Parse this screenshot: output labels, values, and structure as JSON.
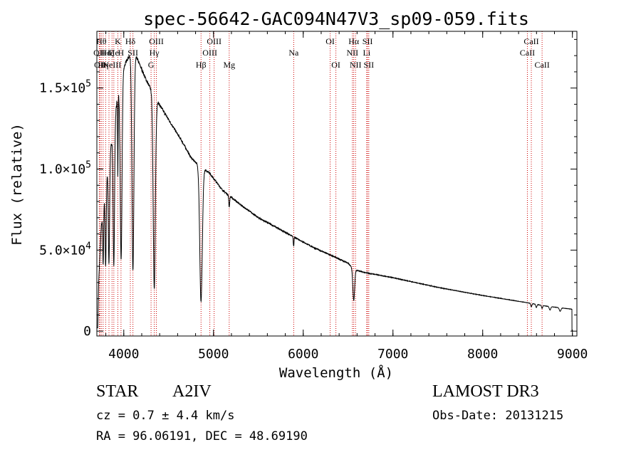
{
  "chart_data": {
    "type": "line",
    "title": "spec-56642-GAC094N47V3_sp09-059.fits",
    "xlabel": "Wavelength (Å)",
    "ylabel": "Flux (relative)",
    "xlim": [
      3700,
      9050
    ],
    "ylim": [
      -3000,
      185000
    ],
    "xticks": [
      {
        "value": 4000,
        "label": "4000"
      },
      {
        "value": 5000,
        "label": "5000"
      },
      {
        "value": 6000,
        "label": "6000"
      },
      {
        "value": 7000,
        "label": "7000"
      },
      {
        "value": 8000,
        "label": "8000"
      },
      {
        "value": 9000,
        "label": "9000"
      }
    ],
    "yticks": [
      {
        "value": 0,
        "mant": "0",
        "exp": ""
      },
      {
        "value": 50000,
        "mant": "5.0×10",
        "exp": "4"
      },
      {
        "value": 100000,
        "mant": "1.0×10",
        "exp": "5"
      },
      {
        "value": 150000,
        "mant": "1.5×10",
        "exp": "5"
      }
    ],
    "continuum": [
      [
        3710,
        2000
      ],
      [
        3720,
        30000
      ],
      [
        3750,
        65000
      ],
      [
        3800,
        90000
      ],
      [
        3860,
        115000
      ],
      [
        3920,
        140000
      ],
      [
        3980,
        160000
      ],
      [
        4040,
        168000
      ],
      [
        4100,
        172000
      ],
      [
        4150,
        168000
      ],
      [
        4250,
        155000
      ],
      [
        4350,
        144000
      ],
      [
        4450,
        135000
      ],
      [
        4550,
        126000
      ],
      [
        4650,
        117000
      ],
      [
        4750,
        107000
      ],
      [
        4861,
        101000
      ],
      [
        4950,
        98000
      ],
      [
        5100,
        87000
      ],
      [
        5300,
        78000
      ],
      [
        5500,
        70000
      ],
      [
        5700,
        64000
      ],
      [
        5900,
        58000
      ],
      [
        6100,
        52000
      ],
      [
        6300,
        47000
      ],
      [
        6500,
        42000
      ],
      [
        6563,
        38000
      ],
      [
        6700,
        36000
      ],
      [
        7000,
        33000
      ],
      [
        7500,
        27000
      ],
      [
        8000,
        22000
      ],
      [
        8500,
        17500
      ],
      [
        8700,
        15500
      ],
      [
        9000,
        13500
      ]
    ],
    "absorption": [
      {
        "name": "H-alpha",
        "center": 6563,
        "width": 10,
        "depth": 0.5
      },
      {
        "name": "H-beta",
        "center": 4861,
        "width": 14,
        "depth": 0.82
      },
      {
        "name": "H-gamma",
        "center": 4340,
        "width": 12,
        "depth": 0.82
      },
      {
        "name": "H-delta",
        "center": 4102,
        "width": 11,
        "depth": 0.78
      },
      {
        "name": "H-epsilon",
        "center": 3970,
        "width": 10,
        "depth": 0.72
      },
      {
        "name": "H8",
        "center": 3889,
        "width": 8,
        "depth": 0.68
      },
      {
        "name": "H9",
        "center": 3835,
        "width": 7,
        "depth": 0.6
      },
      {
        "name": "H10",
        "center": 3798,
        "width": 6,
        "depth": 0.55
      },
      {
        "name": "H11",
        "center": 3770,
        "width": 5,
        "depth": 0.45
      },
      {
        "name": "Ca K",
        "center": 3934,
        "width": 3,
        "depth": 0.35
      },
      {
        "name": "Mg",
        "center": 5175,
        "width": 5,
        "depth": 0.08
      },
      {
        "name": "Na",
        "center": 5893,
        "width": 4,
        "depth": 0.1
      },
      {
        "name": "CaII trip 1",
        "center": 8542,
        "width": 6,
        "depth": 0.12
      },
      {
        "name": "CaII trip 2",
        "center": 8662,
        "width": 6,
        "depth": 0.12
      },
      {
        "name": "Paschen 1",
        "center": 8750,
        "width": 8,
        "depth": 0.14
      },
      {
        "name": "Paschen 2",
        "center": 8863,
        "width": 9,
        "depth": 0.15
      },
      {
        "name": "Paschen 3",
        "center": 8598,
        "width": 6,
        "depth": 0.12
      }
    ],
    "line_markers": [
      {
        "wave": 3727,
        "label": "OII",
        "row": 2
      },
      {
        "wave": 3735,
        "label": "OII",
        "row": 3
      },
      {
        "wave": 3750,
        "label": "Hθ",
        "row": 1
      },
      {
        "wave": 3770,
        "label": "Hη",
        "row": 3
      },
      {
        "wave": 3798,
        "label": "Hε",
        "row": 2
      },
      {
        "wave": 3835,
        "label": "Hζ",
        "row": 2
      },
      {
        "wave": 3869,
        "label": "NeIII",
        "row": 3
      },
      {
        "wave": 3889,
        "label": "He",
        "row": 2
      },
      {
        "wave": 3934,
        "label": "K",
        "row": 1
      },
      {
        "wave": 3969,
        "label": "H",
        "row": 2
      },
      {
        "wave": 4073,
        "label": "Hδ",
        "row": 1
      },
      {
        "wave": 4102,
        "label": "SII",
        "row": 2
      },
      {
        "wave": 4304,
        "label": "G",
        "row": 3
      },
      {
        "wave": 4340,
        "label": "Hγ",
        "row": 2
      },
      {
        "wave": 4363,
        "label": "OIII",
        "row": 1
      },
      {
        "wave": 4861,
        "label": "Hβ",
        "row": 3
      },
      {
        "wave": 4959,
        "label": "OIII",
        "row": 2
      },
      {
        "wave": 5007,
        "label": "OIII",
        "row": 1
      },
      {
        "wave": 5175,
        "label": "Mg",
        "row": 3
      },
      {
        "wave": 5894,
        "label": "Na",
        "row": 2
      },
      {
        "wave": 6300,
        "label": "OI",
        "row": 1
      },
      {
        "wave": 6364,
        "label": "OI",
        "row": 3
      },
      {
        "wave": 6548,
        "label": "NII",
        "row": 2
      },
      {
        "wave": 6563,
        "label": "Hα",
        "row": 1
      },
      {
        "wave": 6583,
        "label": "NII",
        "row": 3
      },
      {
        "wave": 6707,
        "label": "Li",
        "row": 2
      },
      {
        "wave": 6717,
        "label": "SII",
        "row": 1
      },
      {
        "wave": 6731,
        "label": "SII",
        "row": 3
      },
      {
        "wave": 8498,
        "label": "CaII",
        "row": 2
      },
      {
        "wave": 8542,
        "label": "CaII",
        "row": 1
      },
      {
        "wave": 8662,
        "label": "CaII",
        "row": 3
      }
    ],
    "marker_color": "#cc0000",
    "line_color": "#000000"
  },
  "info": {
    "class_label": "STAR",
    "subclass": "A2IV",
    "survey": "LAMOST DR3",
    "cz": "cz = 0.7 ± 4.4 km/s",
    "obs_date": "Obs-Date: 20131215",
    "coords": "RA =  96.06191, DEC =  48.69190"
  }
}
